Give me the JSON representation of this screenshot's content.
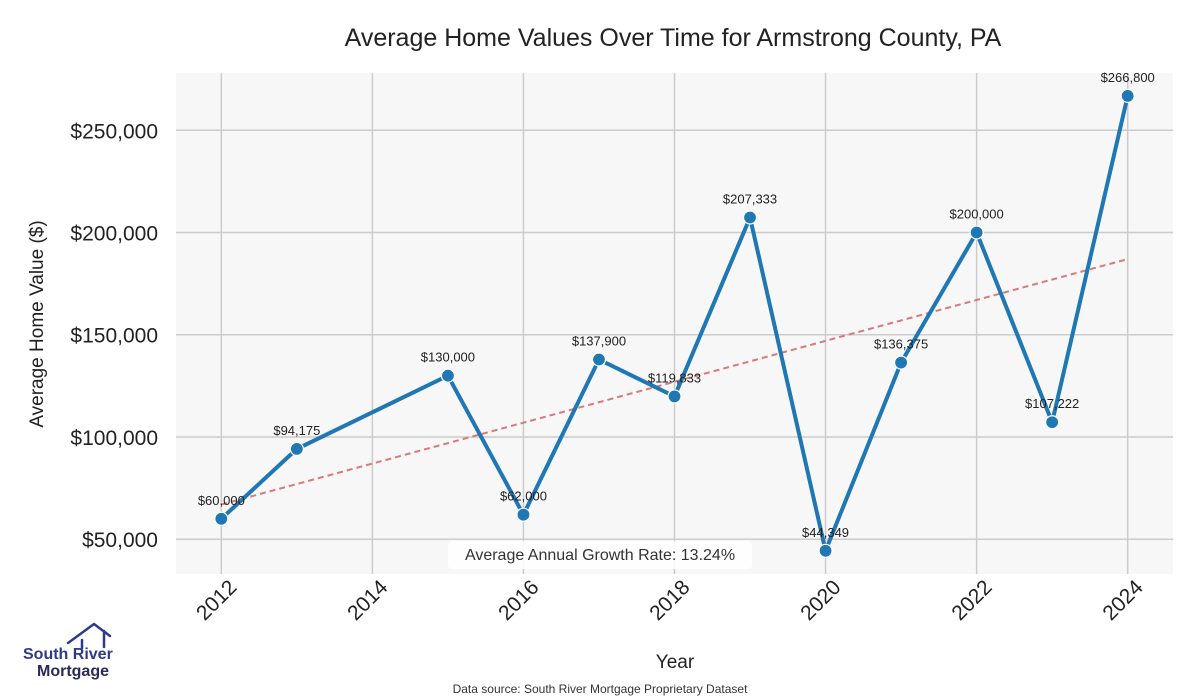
{
  "chart_data": {
    "type": "line",
    "title": "Average Home Values Over Time for Armstrong County, PA",
    "xlabel": "Year",
    "ylabel": "Average Home Value ($)",
    "x": [
      2012,
      2013,
      2015,
      2016,
      2017,
      2018,
      2019,
      2020,
      2021,
      2022,
      2023,
      2024
    ],
    "series": [
      {
        "name": "Average Home Value",
        "color": "#1f77b4",
        "values": [
          60000,
          94175,
          130000,
          62000,
          137900,
          119833,
          207333,
          44349,
          136375,
          200000,
          107222,
          266800
        ],
        "labels": [
          "$60,000",
          "$94,175",
          "$130,000",
          "$62,000",
          "$137,900",
          "$119,833",
          "$207,333",
          "$44,349",
          "$136,375",
          "$200,000",
          "$107,222",
          "$266,800"
        ]
      }
    ],
    "trendline": {
      "name": "Trend",
      "color": "#d9797a",
      "start": [
        2012,
        67000
      ],
      "end": [
        2024,
        187000
      ]
    },
    "xlim": [
      2011.4,
      2024.6
    ],
    "ylim": [
      33000,
      278000
    ],
    "xticks": [
      2012,
      2014,
      2016,
      2018,
      2020,
      2022,
      2024
    ],
    "xtick_labels": [
      "2012",
      "2014",
      "2016",
      "2018",
      "2020",
      "2022",
      "2024"
    ],
    "yticks": [
      50000,
      100000,
      150000,
      200000,
      250000
    ],
    "ytick_labels": [
      "$50,000",
      "$100,000",
      "$150,000",
      "$200,000",
      "$250,000"
    ],
    "grid": true,
    "annotation": "Average Annual Growth Rate: 13.24%",
    "source": "Data source: South River Mortgage Proprietary Dataset"
  },
  "logo": {
    "line1": "South River",
    "line2": "Mortgage",
    "primary_color": "#2d3a8c",
    "secondary_color": "#2a2a5a"
  }
}
